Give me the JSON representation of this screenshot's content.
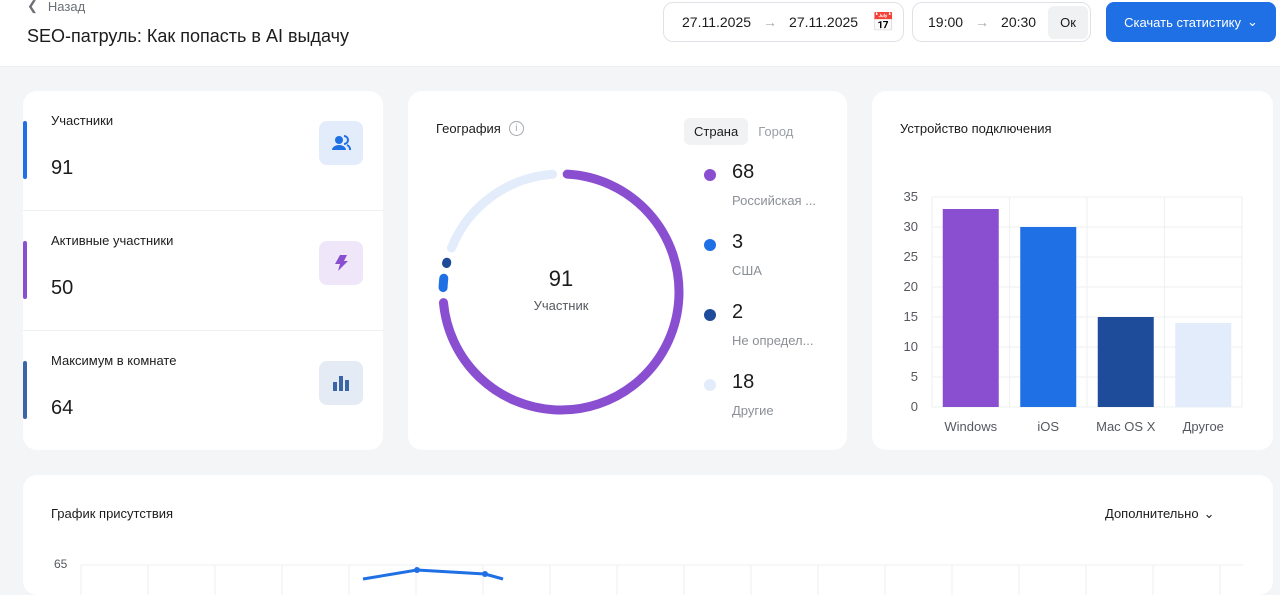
{
  "header": {
    "back_label": "Назад",
    "title": "SEO-патруль: Как попасть в AI выдачу",
    "date_from": "27.11.2025",
    "date_to": "27.11.2025",
    "time_from": "19:00",
    "time_to": "20:30",
    "ok_label": "Ок",
    "download_label": "Скачать статистику"
  },
  "stats": [
    {
      "label": "Участники",
      "value": "91",
      "color": "#1f6fe5",
      "icon": "users-icon"
    },
    {
      "label": "Активные участники",
      "value": "50",
      "color": "#8a4fd0",
      "icon": "lightning-icon"
    },
    {
      "label": "Максимум в комнате",
      "value": "64",
      "color": "#3a66a8",
      "icon": "bar-chart-icon"
    }
  ],
  "geo": {
    "title": "География",
    "tabs": [
      "Страна",
      "Город"
    ],
    "active_tab": "Страна",
    "total": "91",
    "total_label": "Участник",
    "items": [
      {
        "value": 68,
        "label": "Российская ...",
        "color": "#8a4fd0"
      },
      {
        "value": 3,
        "label": "США",
        "color": "#1f6fe5"
      },
      {
        "value": 2,
        "label": "Не определ...",
        "color": "#1e4c9a"
      },
      {
        "value": 18,
        "label": "Другие",
        "color": "#e3ecfb"
      }
    ]
  },
  "devices": {
    "title": "Устройство подключения",
    "chart_data": {
      "type": "bar",
      "categories": [
        "Windows",
        "iOS",
        "Mac OS X",
        "Другое"
      ],
      "values": [
        33,
        30,
        15,
        14
      ],
      "colors": [
        "#8a4fd0",
        "#1f6fe5",
        "#1e4c9a",
        "#e3ecfb"
      ],
      "ylim": [
        0,
        35
      ],
      "yticks": [
        0,
        5,
        10,
        15,
        20,
        25,
        30,
        35
      ],
      "grid": true
    }
  },
  "presence": {
    "title": "График присутствия",
    "more_label": "Дополнительно",
    "y_top_tick": "65"
  }
}
